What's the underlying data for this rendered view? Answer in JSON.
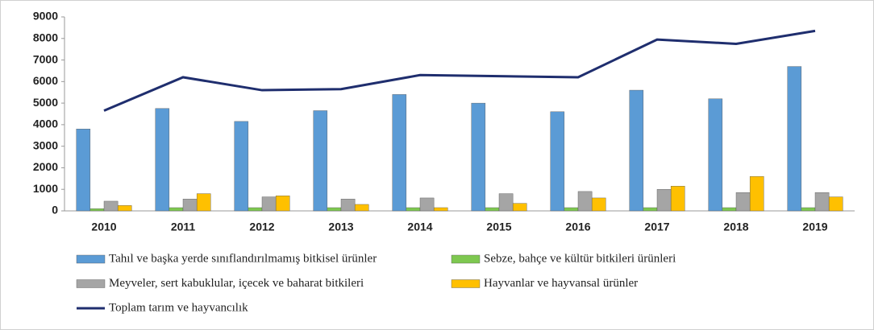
{
  "chart_data": {
    "type": "bar",
    "categories": [
      "2010",
      "2011",
      "2012",
      "2013",
      "2014",
      "2015",
      "2016",
      "2017",
      "2018",
      "2019"
    ],
    "series": [
      {
        "name": "Tahıl ve başka yerde sınıflandırılmamış bitkisel ürünler",
        "color": "#5b9bd5",
        "values": [
          3800,
          4750,
          4150,
          4650,
          5400,
          5000,
          4600,
          5600,
          5200,
          6700
        ]
      },
      {
        "name": "Sebze, bahçe ve kültür bitkileri ürünleri",
        "color": "#7ec850",
        "values": [
          100,
          150,
          150,
          150,
          150,
          150,
          150,
          150,
          150,
          150
        ]
      },
      {
        "name": "Meyveler, sert kabuklular, içecek ve baharat bitkileri",
        "color": "#a5a5a5",
        "values": [
          450,
          550,
          650,
          550,
          600,
          800,
          900,
          1000,
          850,
          850
        ]
      },
      {
        "name": "Hayvanlar ve hayvansal ürünler",
        "color": "#ffc000",
        "values": [
          250,
          800,
          700,
          300,
          150,
          350,
          600,
          1150,
          1600,
          650
        ]
      },
      {
        "name": "Toplam tarım ve hayvancılık",
        "type": "line",
        "color": "#1f2e6e",
        "values": [
          4650,
          6200,
          5600,
          5650,
          6300,
          6250,
          6200,
          7950,
          7750,
          8350
        ]
      }
    ],
    "ylim": [
      0,
      9000
    ],
    "yticks": [
      0,
      1000,
      2000,
      3000,
      4000,
      5000,
      6000,
      7000,
      8000,
      9000
    ],
    "grid": false
  }
}
